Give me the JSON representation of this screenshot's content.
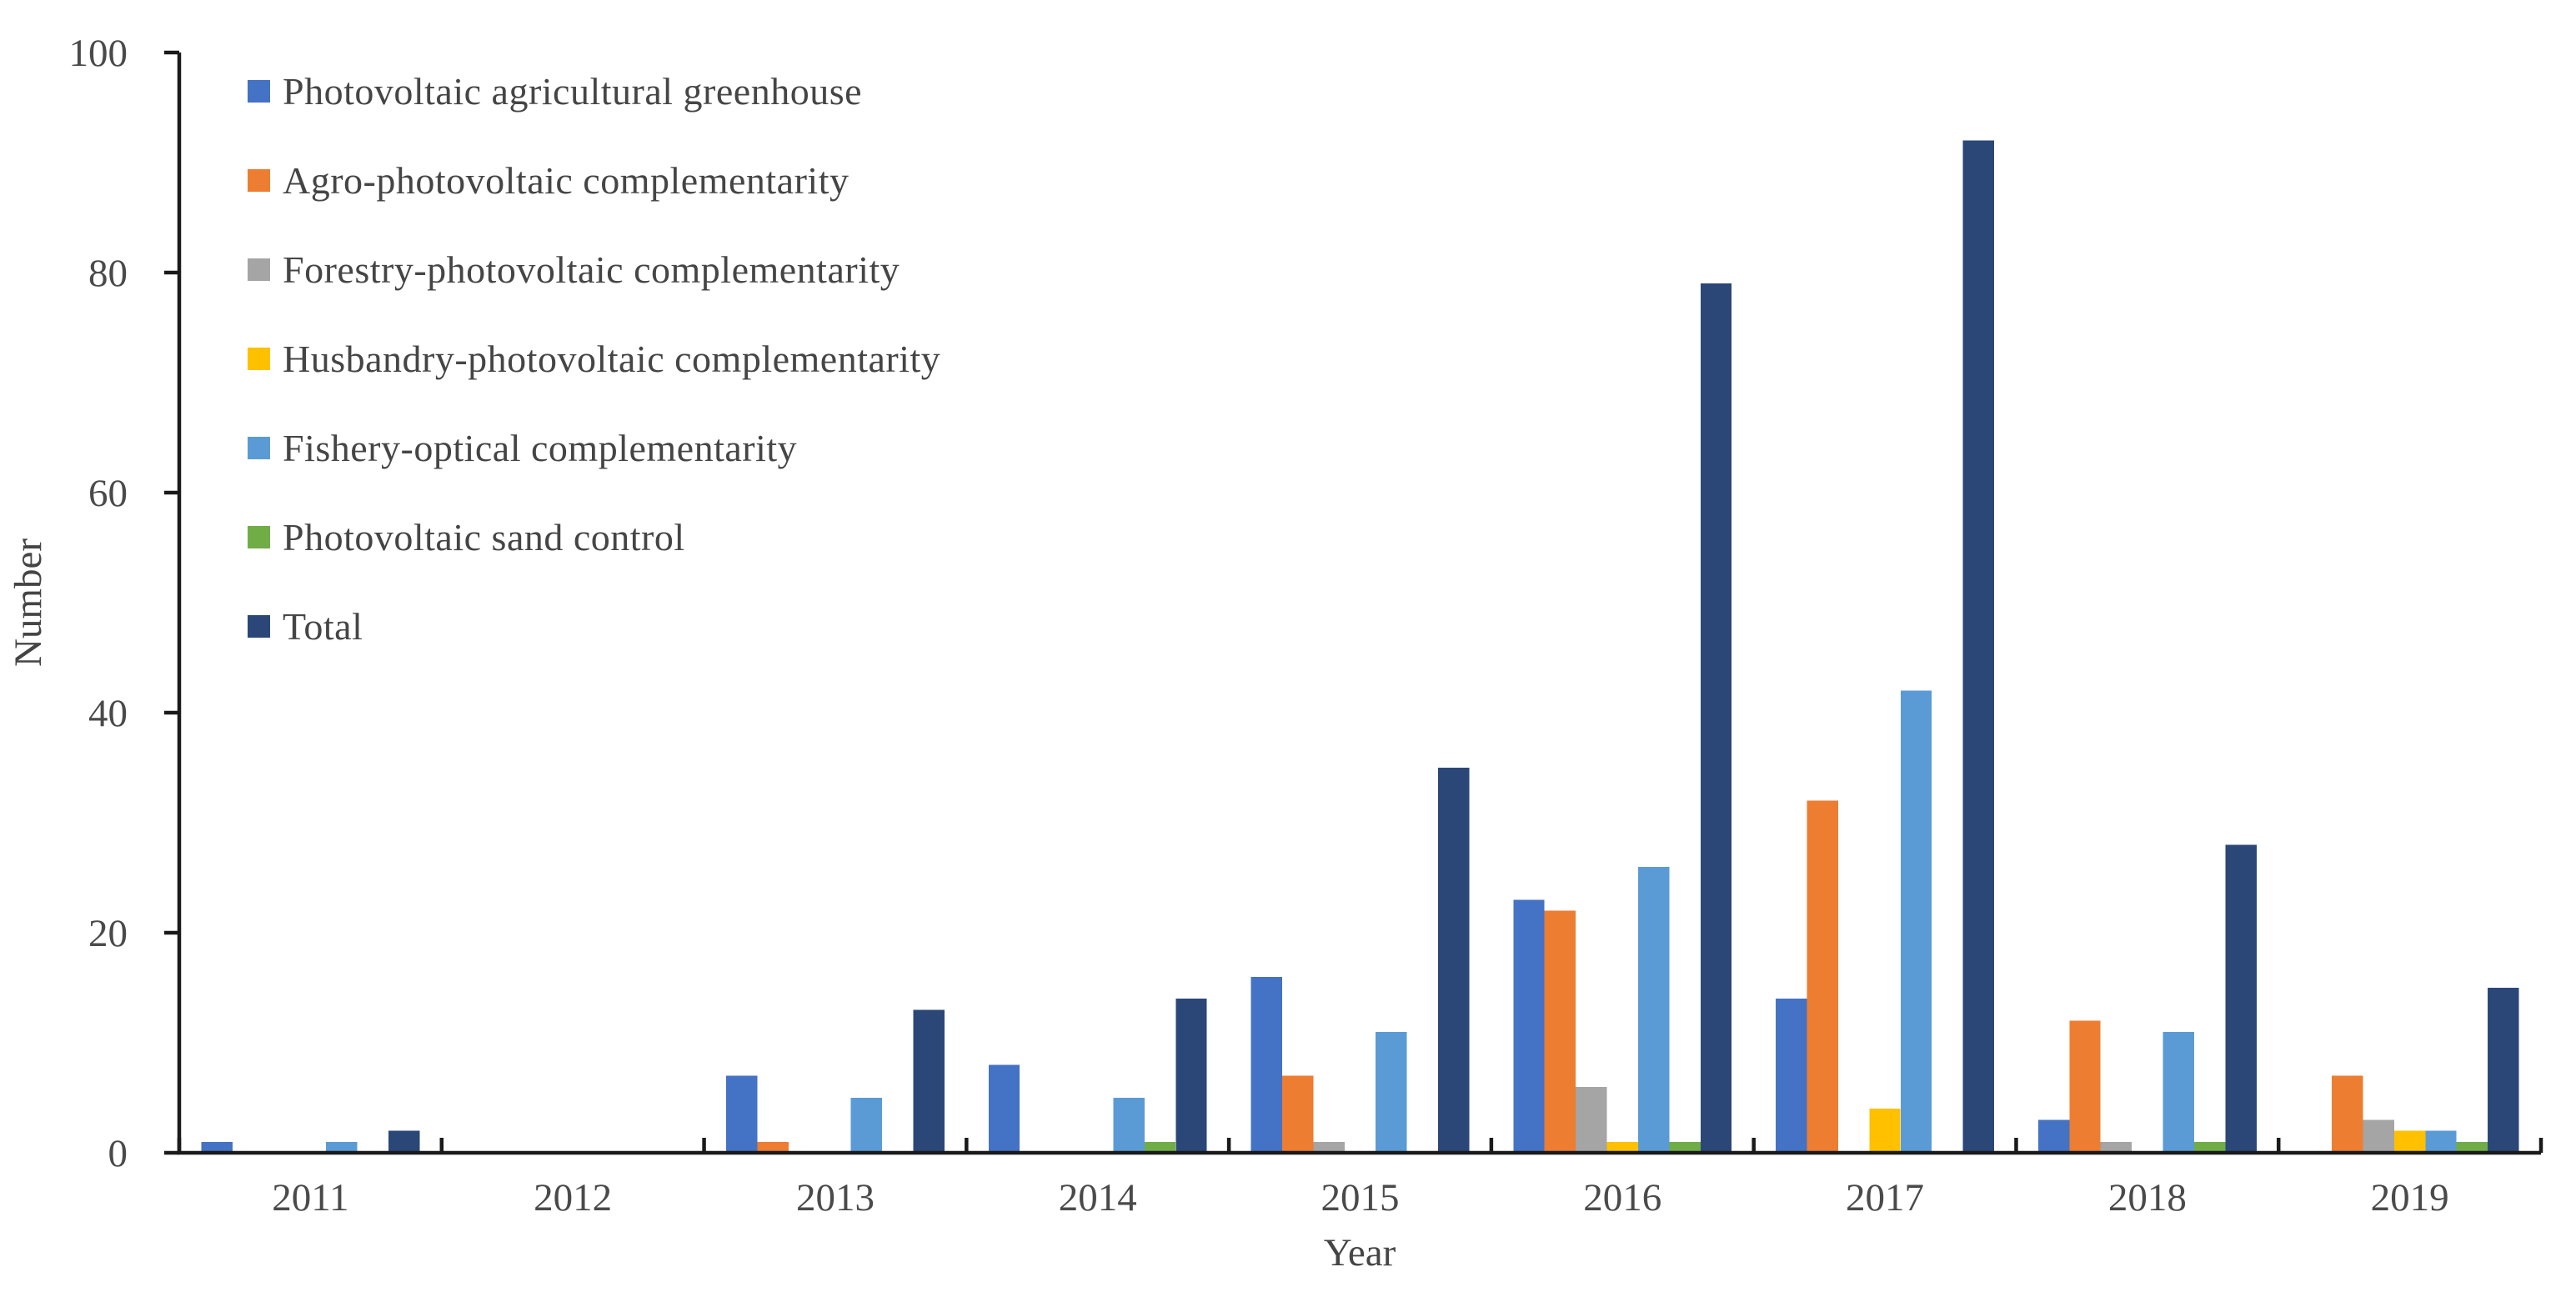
{
  "chart_data": {
    "type": "bar",
    "title": "",
    "xlabel": "Year",
    "ylabel": "Number",
    "categories": [
      "2011",
      "2012",
      "2013",
      "2014",
      "2015",
      "2016",
      "2017",
      "2018",
      "2019"
    ],
    "ylim": [
      0,
      100
    ],
    "yticks": [
      0,
      20,
      40,
      60,
      80,
      100
    ],
    "grid": false,
    "legend_position": "inside-top-left",
    "axis_color": "#1a1a1a",
    "text_color": "#4a4a4a",
    "series": [
      {
        "name": "Photovoltaic agricultural greenhouse",
        "color": "#4472C4",
        "values": [
          1,
          0,
          7,
          8,
          16,
          23,
          14,
          3,
          0
        ]
      },
      {
        "name": "Agro-photovoltaic complementarity",
        "color": "#ED7D31",
        "values": [
          0,
          0,
          1,
          0,
          7,
          22,
          32,
          12,
          7
        ]
      },
      {
        "name": "Forestry-photovoltaic complementarity",
        "color": "#A5A5A5",
        "values": [
          0,
          0,
          0,
          0,
          1,
          6,
          0,
          1,
          3
        ]
      },
      {
        "name": "Husbandry-photovoltaic complementarity",
        "color": "#FFC000",
        "values": [
          0,
          0,
          0,
          0,
          0,
          1,
          4,
          0,
          2
        ]
      },
      {
        "name": "Fishery-optical complementarity",
        "color": "#5B9BD5",
        "values": [
          1,
          0,
          5,
          5,
          11,
          26,
          42,
          11,
          2
        ]
      },
      {
        "name": "Photovoltaic sand control",
        "color": "#70AD47",
        "values": [
          0,
          0,
          0,
          1,
          0,
          1,
          0,
          1,
          1
        ]
      },
      {
        "name": "Total",
        "color": "#2B4778",
        "values": [
          2,
          0,
          13,
          14,
          35,
          79,
          92,
          28,
          15
        ]
      }
    ]
  }
}
